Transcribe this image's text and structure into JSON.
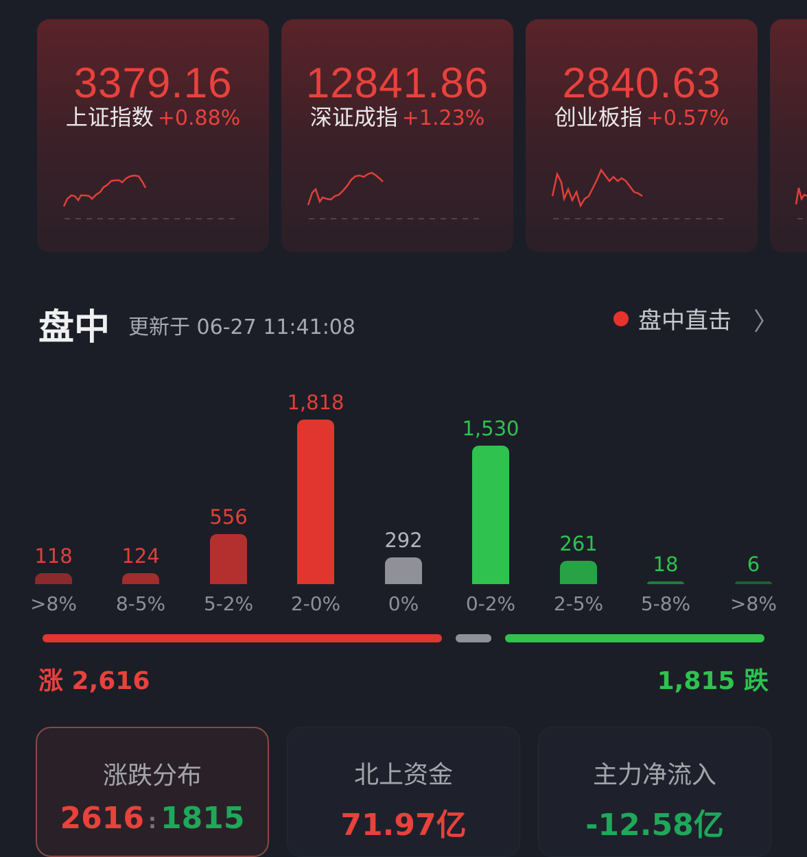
{
  "indices": [
    {
      "value": "3379.16",
      "name": "上证指数",
      "change": "+0.88%"
    },
    {
      "value": "12841.86",
      "name": "深证成指",
      "change": "+1.23%"
    },
    {
      "value": "2840.63",
      "name": "创业板指",
      "change": "+0.57%"
    }
  ],
  "section": {
    "title": "盘中",
    "updated": "更新于 06-27 11:41:08",
    "live_label": "盘中直击"
  },
  "chart_data": {
    "type": "bar",
    "categories": [
      ">8%",
      "8-5%",
      "5-2%",
      "2-0%",
      "0%",
      "0-2%",
      "2-5%",
      "5-8%",
      ">8%"
    ],
    "values": [
      118,
      124,
      556,
      1818,
      292,
      1530,
      261,
      18,
      6
    ],
    "value_labels": [
      "118",
      "124",
      "556",
      "1,818",
      "292",
      "1,530",
      "261",
      "18",
      "6"
    ],
    "colors": [
      "#8b2a2c",
      "#a12d2d",
      "#b3302f",
      "#e0362f",
      "#8f9098",
      "#2fc24f",
      "#27a346",
      "#1f7d3a",
      "#1a6132"
    ],
    "label_colors": [
      "#e0403a",
      "#e0403a",
      "#e0403a",
      "#e0403a",
      "#b4b5bc",
      "#2fc24f",
      "#2fc24f",
      "#2fc24f",
      "#2fc24f"
    ]
  },
  "totals": {
    "up_label": "涨 2,616",
    "down_label": "1,815 跌",
    "up": 2616,
    "flat": 292,
    "down": 1815
  },
  "tiles": [
    {
      "label": "涨跌分布",
      "up": "2616",
      "sep": ":",
      "down": "1815"
    },
    {
      "label": "北上资金",
      "value": "71.97亿"
    },
    {
      "label": "主力净流入",
      "value": "-12.58亿"
    }
  ],
  "colors": {
    "up": "#e8423c",
    "down": "#2fc24f",
    "bg": "#1b1e27"
  }
}
